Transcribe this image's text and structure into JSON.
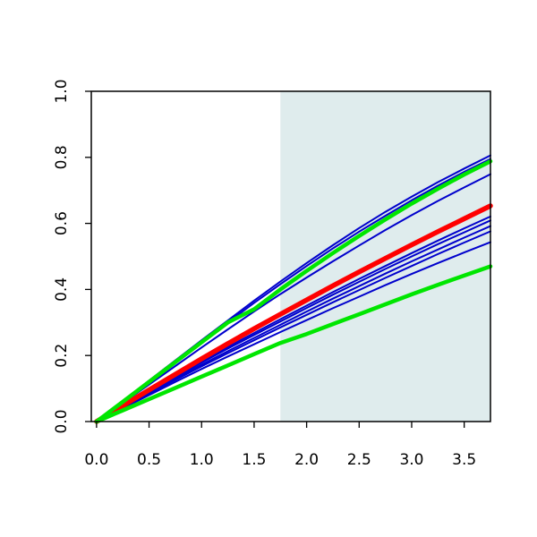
{
  "chart_data": {
    "type": "line",
    "title": "",
    "xlabel": "",
    "ylabel": "",
    "xlim": [
      -0.05,
      3.75
    ],
    "ylim": [
      0.0,
      1.0
    ],
    "x_ticks": [
      "0.0",
      "0.5",
      "1.0",
      "1.5",
      "2.0",
      "2.5",
      "3.0",
      "3.5"
    ],
    "y_ticks": [
      "0.0",
      "0.2",
      "0.4",
      "0.6",
      "0.8",
      "1.0"
    ],
    "shaded_region": {
      "x_from": 1.75,
      "x_to": 3.75,
      "color": "#dfeced"
    },
    "colors": {
      "sample": "#0000cc",
      "mean": "#ff0000",
      "bounds": "#00e600"
    },
    "x": [
      0.0,
      0.25,
      0.5,
      0.75,
      1.0,
      1.25,
      1.5,
      1.75,
      2.0,
      2.25,
      2.5,
      2.75,
      3.0,
      3.25,
      3.5,
      3.75
    ],
    "series": [
      {
        "role": "sample",
        "values": [
          0.0,
          0.062,
          0.124,
          0.185,
          0.246,
          0.306,
          0.366,
          0.424,
          0.48,
          0.534,
          0.586,
          0.635,
          0.681,
          0.725,
          0.766,
          0.806
        ]
      },
      {
        "role": "sample",
        "values": [
          0.0,
          0.06,
          0.12,
          0.18,
          0.24,
          0.3,
          0.359,
          0.416,
          0.471,
          0.524,
          0.575,
          0.623,
          0.67,
          0.714,
          0.756,
          0.795
        ]
      },
      {
        "role": "sample",
        "values": [
          0.0,
          0.056,
          0.112,
          0.168,
          0.224,
          0.279,
          0.333,
          0.386,
          0.436,
          0.485,
          0.533,
          0.58,
          0.625,
          0.668,
          0.709,
          0.749
        ]
      },
      {
        "role": "sample",
        "values": [
          0.0,
          0.046,
          0.092,
          0.137,
          0.182,
          0.226,
          0.268,
          0.31,
          0.351,
          0.392,
          0.432,
          0.471,
          0.51,
          0.548,
          0.585,
          0.621
        ]
      },
      {
        "role": "sample",
        "values": [
          0.0,
          0.045,
          0.09,
          0.134,
          0.178,
          0.221,
          0.262,
          0.303,
          0.344,
          0.384,
          0.423,
          0.462,
          0.5,
          0.537,
          0.573,
          0.609
        ]
      },
      {
        "role": "sample",
        "values": [
          0.0,
          0.044,
          0.087,
          0.13,
          0.172,
          0.213,
          0.253,
          0.293,
          0.333,
          0.372,
          0.41,
          0.448,
          0.485,
          0.521,
          0.557,
          0.592
        ]
      },
      {
        "role": "sample",
        "values": [
          0.0,
          0.042,
          0.084,
          0.126,
          0.167,
          0.207,
          0.246,
          0.285,
          0.323,
          0.361,
          0.398,
          0.435,
          0.471,
          0.507,
          0.542,
          0.576
        ]
      },
      {
        "role": "sample",
        "values": [
          0.0,
          0.04,
          0.08,
          0.12,
          0.159,
          0.197,
          0.234,
          0.271,
          0.307,
          0.343,
          0.378,
          0.413,
          0.447,
          0.48,
          0.512,
          0.543
        ]
      },
      {
        "role": "mean",
        "values": [
          0.0,
          0.048,
          0.096,
          0.143,
          0.19,
          0.236,
          0.281,
          0.325,
          0.368,
          0.411,
          0.453,
          0.494,
          0.535,
          0.575,
          0.614,
          0.653
        ]
      },
      {
        "role": "upper-bound",
        "values": [
          0.0,
          0.06,
          0.12,
          0.18,
          0.24,
          0.3,
          0.34,
          0.4,
          0.456,
          0.51,
          0.562,
          0.612,
          0.66,
          0.705,
          0.748,
          0.788
        ]
      },
      {
        "role": "lower-bound",
        "values": [
          0.0,
          0.034,
          0.068,
          0.102,
          0.136,
          0.17,
          0.204,
          0.238,
          0.265,
          0.295,
          0.325,
          0.355,
          0.385,
          0.414,
          0.442,
          0.47
        ]
      }
    ]
  }
}
